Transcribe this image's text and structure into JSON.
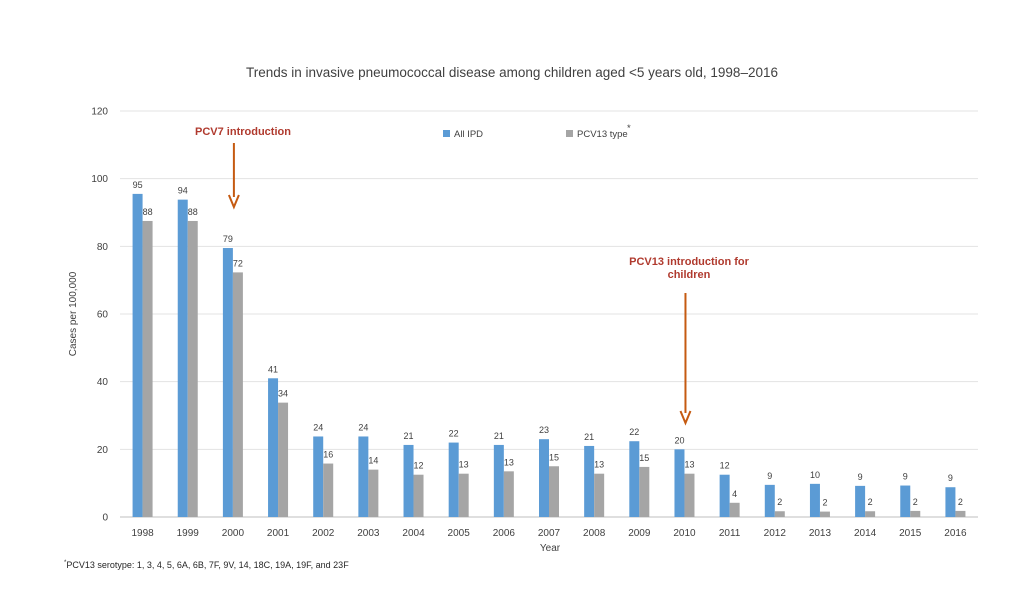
{
  "chart_data": {
    "type": "bar",
    "title": "Trends in invasive pneumococcal disease among children aged <5 years old, 1998–2016",
    "xlabel": "Year",
    "ylabel": "Cases per 100,000",
    "ylim": [
      0,
      120
    ],
    "yticks": [
      "0",
      "20",
      "40",
      "60",
      "80",
      "100",
      "120"
    ],
    "grid": true,
    "legend_position": "top-center",
    "categories": [
      "1998",
      "1999",
      "2000",
      "2001",
      "2002",
      "2003",
      "2004",
      "2005",
      "2006",
      "2007",
      "2008",
      "2009",
      "2010",
      "2011",
      "2012",
      "2013",
      "2014",
      "2015",
      "2016"
    ],
    "series": [
      {
        "name": "All IPD",
        "color": "#5b9bd5",
        "values": [
          95.5,
          93.8,
          79.5,
          41,
          23.8,
          23.8,
          21.3,
          22,
          21.3,
          23,
          21,
          22.4,
          20,
          12.5,
          9.5,
          9.8,
          9.2,
          9.3,
          8.8
        ],
        "labels": [
          "95",
          "94",
          "79",
          "41",
          "24",
          "24",
          "21",
          "22",
          "21",
          "23",
          "21",
          "22",
          "20",
          "12",
          "9",
          "10",
          "9",
          "9",
          "9"
        ]
      },
      {
        "name": "PCV13 type",
        "color": "#a5a5a5",
        "values": [
          87.5,
          87.5,
          72.3,
          33.8,
          15.8,
          14,
          12.5,
          12.8,
          13.5,
          15,
          12.8,
          14.8,
          12.8,
          4.2,
          1.7,
          1.6,
          1.7,
          1.8,
          1.8
        ],
        "labels": [
          "88",
          "88",
          "72",
          "34",
          "16",
          "14",
          "12",
          "13",
          "13",
          "15",
          "13",
          "15",
          "13",
          "4",
          "2",
          "2",
          "2",
          "2",
          "2"
        ]
      }
    ],
    "legend_marker": "*",
    "annotations": [
      {
        "lines": [
          "PCV7 introduction"
        ],
        "year": "2000",
        "color": "#b03a2e",
        "arrow_color": "#c55a11"
      },
      {
        "lines": [
          "PCV13 introduction for",
          "children"
        ],
        "year": "2010",
        "color": "#b03a2e",
        "arrow_color": "#c55a11"
      }
    ]
  },
  "footnote": {
    "marker": "*",
    "text": "PCV13 serotype: 1, 3, 4, 5, 6A, 6B, 7F, 9V, 14, 18C, 19A, 19F, and 23F"
  }
}
